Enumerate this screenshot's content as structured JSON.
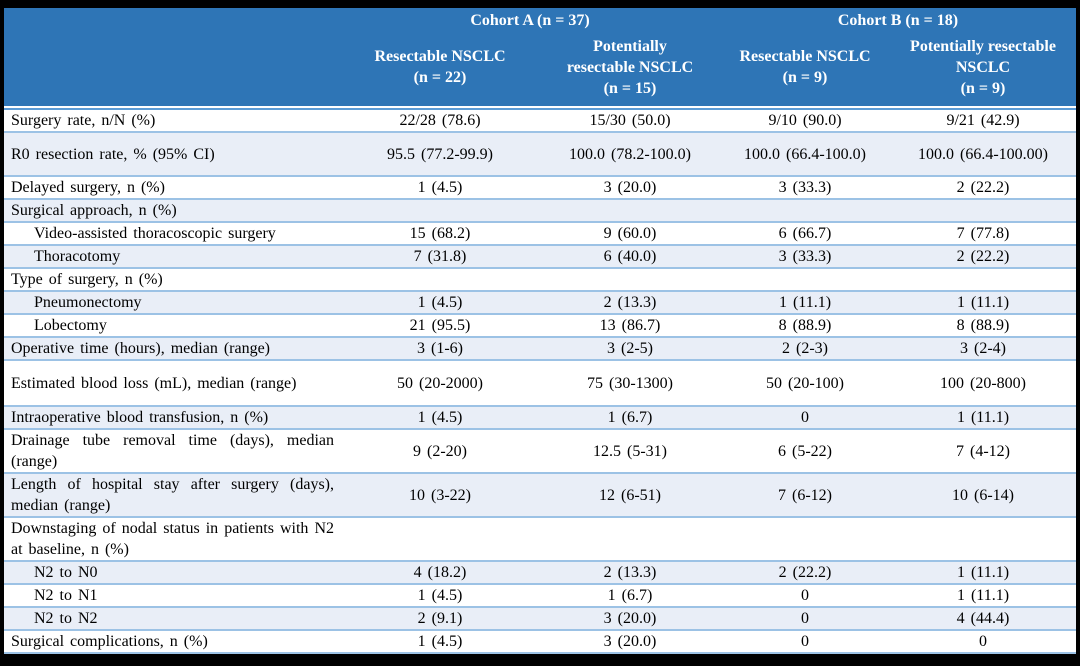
{
  "colors": {
    "header_bg": "#2E75B6",
    "header_text": "#FFFFFF",
    "row_band": "#E9EEF7",
    "row_border": "#9CC2E5",
    "header_rule": "#5B9BD5",
    "frame": "#000000",
    "body_text": "#000000"
  },
  "table": {
    "header": {
      "cohort_a": "Cohort A (n = 37)",
      "cohort_b": "Cohort B (n = 18)",
      "sub": [
        "Resectable NSCLC\n(n = 22)",
        "Potentially\nresectable NSCLC\n(n = 15)",
        "Resectable NSCLC\n(n = 9)",
        "Potentially resectable\nNSCLC\n(n = 9)"
      ]
    },
    "rows": [
      {
        "label": "Surgery rate, n/N (%)",
        "values": [
          "22/28 (78.6)",
          "15/30 (50.0)",
          "9/10 (90.0)",
          "9/21 (42.9)"
        ]
      },
      {
        "label": "R0 resection rate, % (95% CI)",
        "values": [
          "95.5 (77.2-99.9)",
          "100.0 (78.2-100.0)",
          "100.0 (66.4-100.0)",
          "100.0 (66.4-100.00)"
        ]
      },
      {
        "label": "Delayed surgery, n (%)",
        "values": [
          "1 (4.5)",
          "3 (20.0)",
          "3 (33.3)",
          "2 (22.2)"
        ]
      },
      {
        "label": "Surgical approach, n (%)",
        "values": [
          "",
          "",
          "",
          ""
        ]
      },
      {
        "label": "Video-assisted thoracoscopic surgery",
        "values": [
          "15 (68.2)",
          "9 (60.0)",
          "6 (66.7)",
          "7 (77.8)"
        ]
      },
      {
        "label": "Thoracotomy",
        "values": [
          "7 (31.8)",
          "6 (40.0)",
          "3 (33.3)",
          "2 (22.2)"
        ]
      },
      {
        "label": "Type of surgery, n (%)",
        "values": [
          "",
          "",
          "",
          ""
        ]
      },
      {
        "label": "Pneumonectomy",
        "values": [
          "1 (4.5)",
          "2 (13.3)",
          "1 (11.1)",
          "1 (11.1)"
        ]
      },
      {
        "label": "Lobectomy",
        "values": [
          "21 (95.5)",
          "13 (86.7)",
          "8 (88.9)",
          "8 (88.9)"
        ]
      },
      {
        "label": "Operative time (hours), median (range)",
        "values": [
          "3 (1-6)",
          "3 (2-5)",
          "2 (2-3)",
          "3 (2-4)"
        ]
      },
      {
        "label": "Estimated blood loss (mL), median (range)",
        "values": [
          "50 (20-2000)",
          "75 (30-1300)",
          "50 (20-100)",
          "100 (20-800)"
        ]
      },
      {
        "label": "Intraoperative blood transfusion, n (%)",
        "values": [
          "1 (4.5)",
          "1 (6.7)",
          "0",
          "1 (11.1)"
        ]
      },
      {
        "label": "Drainage tube removal time (days), median (range)",
        "values": [
          "9 (2-20)",
          "12.5 (5-31)",
          "6 (5-22)",
          "7 (4-12)"
        ]
      },
      {
        "label": "Length of hospital stay after surgery (days), median (range)",
        "values": [
          "10 (3-22)",
          "12 (6-51)",
          "7 (6-12)",
          "10 (6-14)"
        ]
      },
      {
        "label": "Downstaging of nodal status in patients with N2 at baseline, n (%)",
        "values": [
          "",
          "",
          "",
          ""
        ]
      },
      {
        "label": "N2 to N0",
        "values": [
          "4 (18.2)",
          "2 (13.3)",
          "2 (22.2)",
          "1 (11.1)"
        ]
      },
      {
        "label": "N2 to N1",
        "values": [
          "1 (4.5)",
          "1 (6.7)",
          "0",
          "1 (11.1)"
        ]
      },
      {
        "label": "N2 to N2",
        "values": [
          "2 (9.1)",
          "3 (20.0)",
          "0",
          "4 (44.4)"
        ]
      },
      {
        "label": "Surgical complications, n (%)",
        "values": [
          "1 (4.5)",
          "3 (20.0)",
          "0",
          "0"
        ]
      }
    ]
  }
}
